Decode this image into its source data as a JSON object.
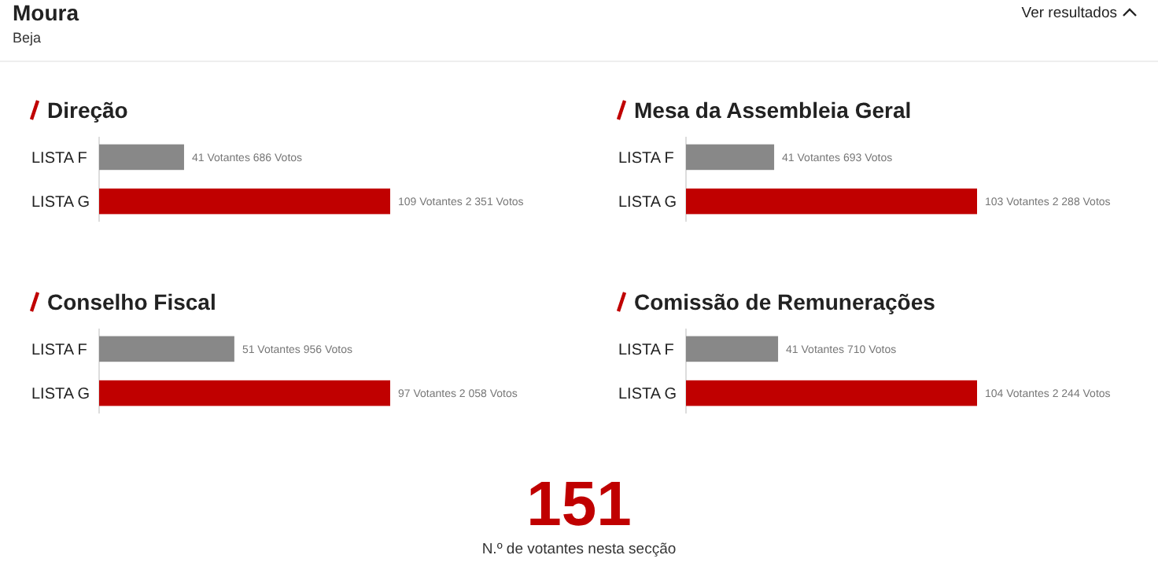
{
  "chart_data": [
    {
      "type": "other",
      "title": "Moura",
      "subtitle": "Beja",
      "annotations": [
        "Ver resultados"
      ]
    },
    {
      "type": "bar",
      "orientation": "horizontal",
      "title": "Direção",
      "categories": [
        "LISTA F",
        "LISTA G"
      ],
      "values": [
        686,
        2351
      ],
      "colors": [
        "#888888",
        "#c00000"
      ],
      "value_labels": [
        "41 Votantes 686 Votos",
        "109 Votantes 2 351 Votos"
      ]
    },
    {
      "type": "bar",
      "orientation": "horizontal",
      "title": "Mesa da Assembleia Geral",
      "categories": [
        "LISTA F",
        "LISTA G"
      ],
      "values": [
        693,
        2288
      ],
      "colors": [
        "#888888",
        "#c00000"
      ],
      "value_labels": [
        "41 Votantes 693 Votos",
        "103 Votantes 2 288 Votos"
      ]
    },
    {
      "type": "bar",
      "orientation": "horizontal",
      "title": "Conselho Fiscal",
      "categories": [
        "LISTA F",
        "LISTA G"
      ],
      "values": [
        956,
        2058
      ],
      "colors": [
        "#888888",
        "#c00000"
      ],
      "value_labels": [
        "51 Votantes 956 Votos",
        "97 Votantes 2 058 Votos"
      ]
    },
    {
      "type": "bar",
      "orientation": "horizontal",
      "title": "Comissão de Remunerações",
      "categories": [
        "LISTA F",
        "LISTA G"
      ],
      "values": [
        710,
        2244
      ],
      "colors": [
        "#888888",
        "#c00000"
      ],
      "value_labels": [
        "41 Votantes 710 Votos",
        "104 Votantes 2 244 Votos"
      ]
    },
    {
      "type": "other",
      "title": "151",
      "subtitle": "N.º de votantes nesta secção"
    }
  ]
}
